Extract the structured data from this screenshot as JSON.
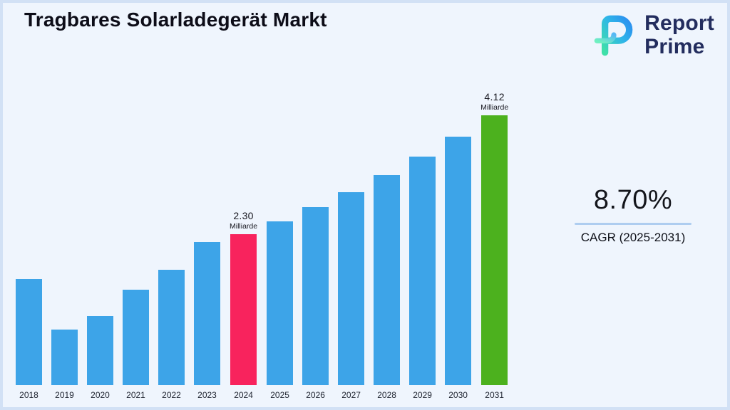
{
  "page": {
    "title": "Tragbares Solarladegerät Markt",
    "background_color": "#eff5fd",
    "border_color": "#d2e1f5"
  },
  "logo": {
    "line1": "Report",
    "line2": "Prime",
    "text_color": "#232d5e",
    "icon": "report-prime-logo-icon",
    "icon_gradient": [
      "#3fe0a8",
      "#2b9ff0"
    ]
  },
  "cagr": {
    "value": "8.70%",
    "label": "CAGR (2025-2031)",
    "underline_color": "#aecdf0"
  },
  "chart_data": {
    "type": "bar",
    "title": "Tragbares Solarladegerät Markt",
    "unit": "Milliarde",
    "categories": [
      "2018",
      "2019",
      "2020",
      "2021",
      "2022",
      "2023",
      "2024",
      "2025",
      "2026",
      "2027",
      "2028",
      "2029",
      "2030",
      "2031"
    ],
    "values": [
      1.62,
      0.85,
      1.05,
      1.46,
      1.76,
      2.19,
      2.3,
      2.5,
      2.72,
      2.95,
      3.21,
      3.49,
      3.79,
      4.12
    ],
    "bar_color": "#3da4e8",
    "highlight_colors": {
      "2024": "#f8235d",
      "2031": "#4cb11e"
    },
    "annotations": [
      {
        "category": "2024",
        "value": "2.30",
        "unit": "Milliarde"
      },
      {
        "category": "2031",
        "value": "4.12",
        "unit": "Milliarde"
      }
    ],
    "xlabel": "",
    "ylabel": "",
    "ylim": [
      0,
      4.5
    ],
    "grid": false,
    "legend": false
  }
}
